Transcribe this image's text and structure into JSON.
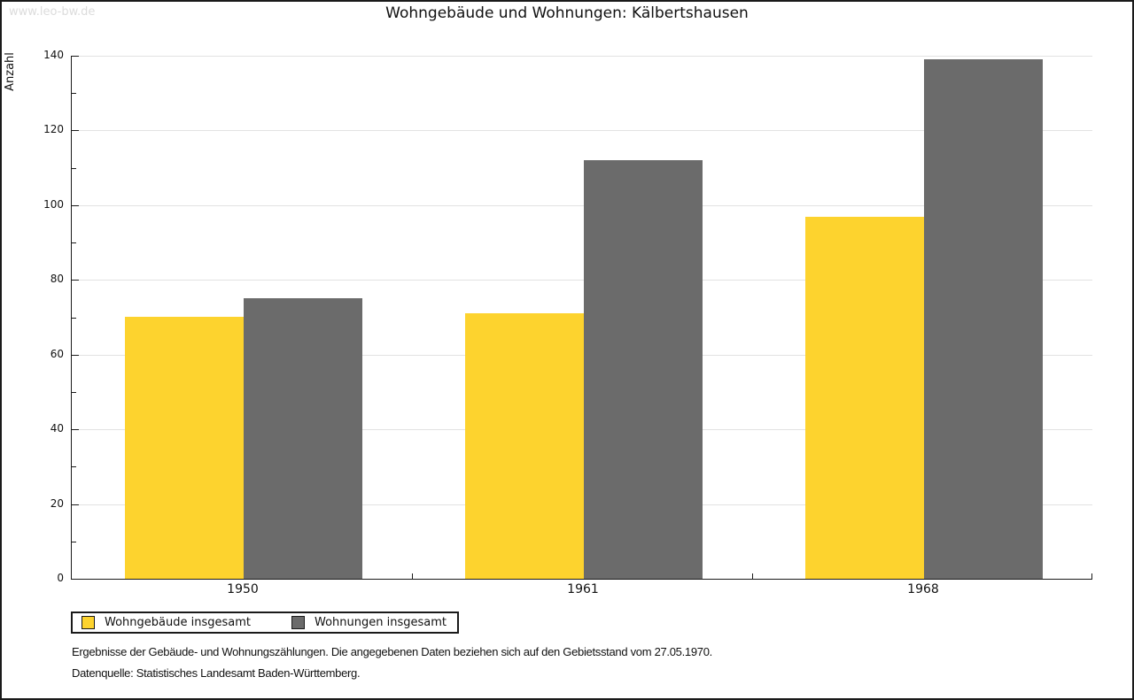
{
  "watermark": "www.leo-bw.de",
  "title": "Wohngebäude und Wohnungen: Kälbertshausen",
  "chart_data": {
    "type": "bar",
    "title": "Wohngebäude und Wohnungen: Kälbertshausen",
    "xlabel": "",
    "ylabel": "Anzahl",
    "categories": [
      "1950",
      "1961",
      "1968"
    ],
    "series": [
      {
        "name": "Wohngebäude insgesamt",
        "color": "#FDD32E",
        "values": [
          70,
          71,
          97
        ]
      },
      {
        "name": "Wohnungen insgesamt",
        "color": "#6B6B6B",
        "values": [
          75,
          112,
          139
        ]
      }
    ],
    "ylim": [
      0,
      140
    ],
    "ytick_step": 20,
    "ytick_minor_step": 10,
    "grid": true,
    "gridline_color": "#e2e2e2",
    "legend_position": "bottom-left"
  },
  "footer": {
    "line1": "Ergebnisse der Gebäude- und Wohnungszählungen. Die angegebenen Daten beziehen sich auf den Gebietsstand vom 27.05.1970.",
    "line2": "Datenquelle: Statistisches Landesamt Baden-Württemberg."
  },
  "colors": {
    "series1": "#FDD32E",
    "series2": "#6B6B6B",
    "axis": "#1a1a1a",
    "gridline": "#e2e2e2",
    "watermark_text": "#dcdcdc",
    "background": "#ffffff"
  }
}
